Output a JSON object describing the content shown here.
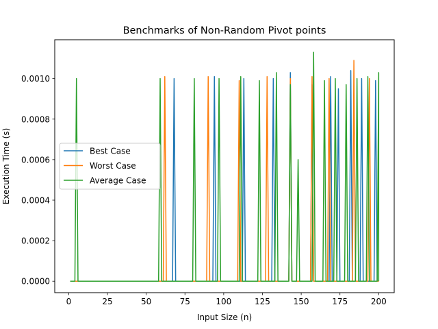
{
  "chart_data": {
    "type": "line",
    "title": "Benchmarks of Non-Random Pivot points",
    "xlabel": "Input Size (n)",
    "ylabel": "Execution Time (s)",
    "xlim": [
      -9,
      210
    ],
    "ylim": [
      -5.68e-05,
      0.0011918
    ],
    "xticks": [
      0,
      25,
      50,
      75,
      100,
      125,
      150,
      175,
      200
    ],
    "xtick_labels": [
      "0",
      "25",
      "50",
      "75",
      "100",
      "125",
      "150",
      "175",
      "200"
    ],
    "yticks": [
      0,
      0.0002,
      0.0004,
      0.0006,
      0.0008,
      0.001
    ],
    "ytick_labels": [
      "0.0000",
      "0.0002",
      "0.0004",
      "0.0006",
      "0.0008",
      "0.0010"
    ],
    "grid": false,
    "legend": {
      "position": "center-left",
      "entries": [
        "Best Case",
        "Worst Case",
        "Average Case"
      ]
    },
    "series": [
      {
        "name": "Best Case",
        "color": "#1f77b4",
        "x_start": 1,
        "x_end": 200,
        "spikes": [
          [
            68,
            0.001
          ],
          [
            94,
            0.00101
          ],
          [
            113,
            0.001
          ],
          [
            132,
            0.001
          ],
          [
            143,
            0.00103
          ],
          [
            157,
            0.00097
          ],
          [
            169,
            0.00101
          ],
          [
            174,
            0.00095
          ],
          [
            182,
            0.00104
          ],
          [
            189,
            0.001
          ],
          [
            198,
            0.00099
          ]
        ]
      },
      {
        "name": "Worst Case",
        "color": "#ff7f0e",
        "x_start": 1,
        "x_end": 200,
        "spikes": [
          [
            62,
            0.00101
          ],
          [
            90,
            0.00101
          ],
          [
            110,
            0.00099
          ],
          [
            128,
            0.00101
          ],
          [
            143,
            0.001
          ],
          [
            157,
            0.00101
          ],
          [
            168,
            0.001
          ],
          [
            184,
            0.00109
          ],
          [
            194,
            0.001
          ]
        ]
      },
      {
        "name": "Average Case",
        "color": "#2ca02c",
        "x_start": 1,
        "x_end": 200,
        "spikes": [
          [
            5,
            0.001
          ],
          [
            59,
            0.001
          ],
          [
            81,
            0.001
          ],
          [
            97,
            0.001
          ],
          [
            111,
            0.00101
          ],
          [
            123,
            0.00099
          ],
          [
            134,
            0.00103
          ],
          [
            143,
            0.00097
          ],
          [
            148,
            0.0006
          ],
          [
            158,
            0.00113
          ],
          [
            165,
            0.00099
          ],
          [
            172,
            0.001
          ],
          [
            179,
            0.00097
          ],
          [
            186,
            0.001
          ],
          [
            193,
            0.00101
          ],
          [
            200,
            0.00103
          ]
        ]
      }
    ]
  }
}
